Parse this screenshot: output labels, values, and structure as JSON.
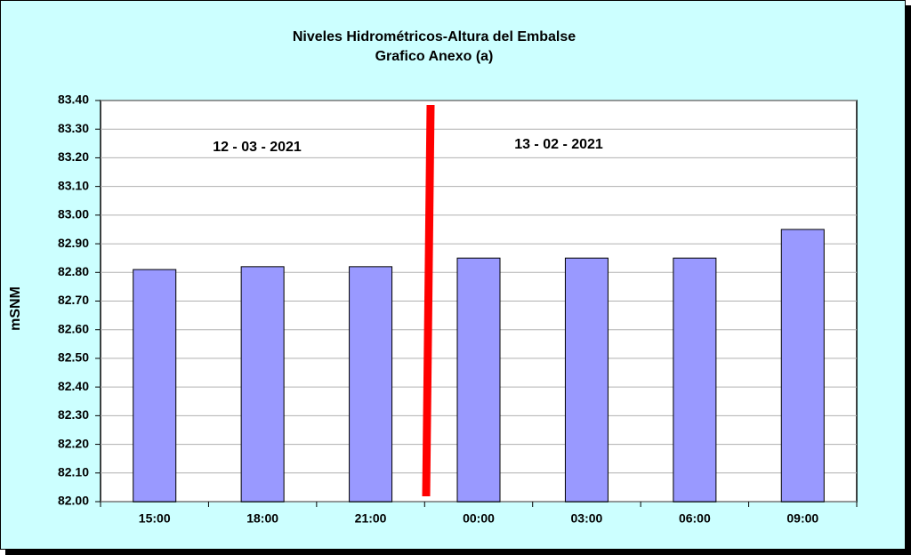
{
  "chart_data": {
    "type": "bar",
    "title": "Niveles Hidrométricos-Altura del Embalse",
    "subtitle": "Grafico Anexo (a)",
    "y_label": "mSNM",
    "annotations": [
      "12 - 03 - 2021",
      "13 - 02 - 2021"
    ],
    "categories": [
      "15:00",
      "18:00",
      "21:00",
      "00:00",
      "03:00",
      "06:00",
      "09:00"
    ],
    "values": [
      82.81,
      82.82,
      82.82,
      82.85,
      82.85,
      82.85,
      82.95
    ],
    "color": "#9999ff",
    "ylim": [
      82.0,
      83.4
    ],
    "yticks": [
      {
        "value": 82.0,
        "label": "82.00"
      },
      {
        "value": 82.1,
        "label": "82.10"
      },
      {
        "value": 82.2,
        "label": "82.20"
      },
      {
        "value": 82.3,
        "label": "82.30"
      },
      {
        "value": 82.4,
        "label": "82.40"
      },
      {
        "value": 82.5,
        "label": "82.50"
      },
      {
        "value": 82.6,
        "label": "82.60"
      },
      {
        "value": 82.7,
        "label": "82.70"
      },
      {
        "value": 82.8,
        "label": "82.80"
      },
      {
        "value": 82.9,
        "label": "82.90"
      },
      {
        "value": 83.0,
        "label": "83.00"
      },
      {
        "value": 83.1,
        "label": "83.10"
      },
      {
        "value": 83.2,
        "label": "83.20"
      },
      {
        "value": 83.3,
        "label": "83.30"
      },
      {
        "value": 83.4,
        "label": "83.40"
      }
    ],
    "grid": true
  }
}
